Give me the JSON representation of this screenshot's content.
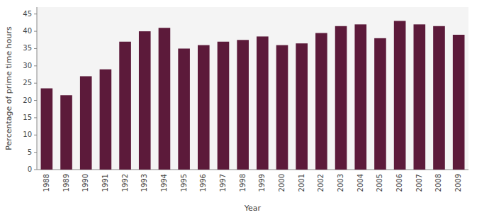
{
  "chart_data": {
    "type": "bar",
    "categories": [
      "1988",
      "1989",
      "1990",
      "1991",
      "1992",
      "1993",
      "1994",
      "1995",
      "1996",
      "1997",
      "1998",
      "1999",
      "2000",
      "2001",
      "2002",
      "2003",
      "2004",
      "2005",
      "2006",
      "2007",
      "2008",
      "2009"
    ],
    "values": [
      23.5,
      21.5,
      27.0,
      29.0,
      37.0,
      40.0,
      41.0,
      35.0,
      36.0,
      37.0,
      37.5,
      38.5,
      36.0,
      36.5,
      39.5,
      41.5,
      42.0,
      38.0,
      43.0,
      42.0,
      41.5,
      39.0
    ],
    "color": "#5c1a3a",
    "xlabel": "Year",
    "ylabel": "Percentage of prime time hours",
    "ylim": [
      0,
      47
    ],
    "yticks": [
      0,
      5,
      10,
      15,
      20,
      25,
      30,
      35,
      40,
      45
    ],
    "grid": false
  }
}
